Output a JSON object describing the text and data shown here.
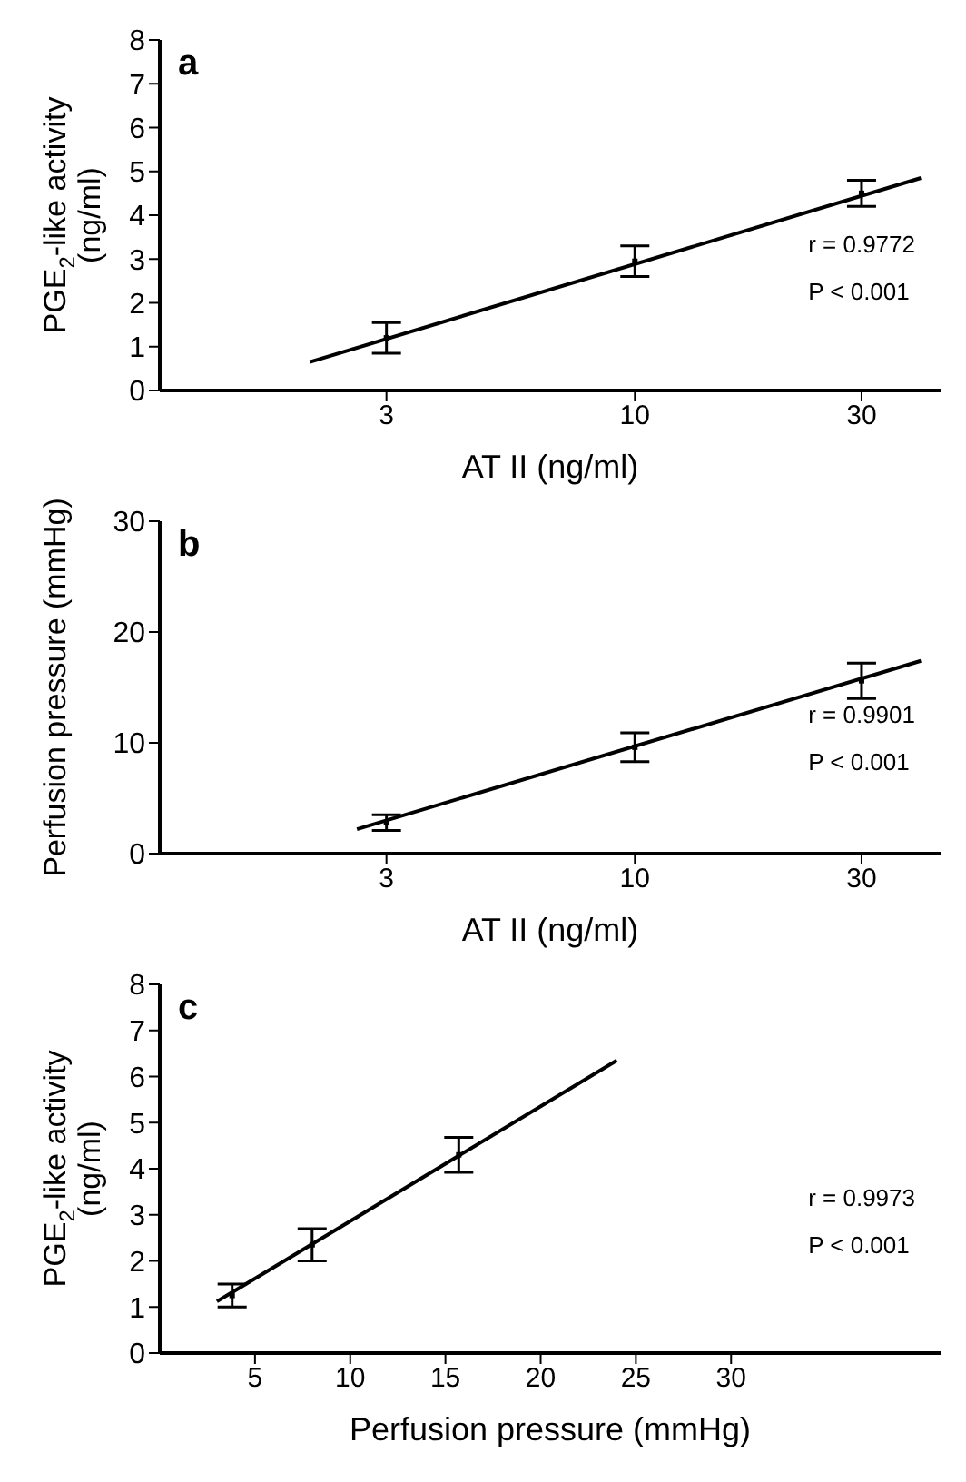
{
  "chart_data": [
    {
      "type": "scatter",
      "title": "a",
      "xlabel": "AT II (ng/ml)",
      "ylabel": "PGE$_{2}$-like activity  (ng/ml)",
      "log": "x",
      "xlim": [
        1,
        44
      ],
      "xticks": [
        3,
        10,
        30
      ],
      "ylim": [
        0,
        8
      ],
      "yticks": [
        0,
        1,
        2,
        3,
        4,
        5,
        6,
        7,
        8
      ],
      "grid": false,
      "annotations": [
        "r = 0.9772",
        "P < 0.001"
      ],
      "series": [
        {
          "type": "scatter",
          "marker": "square",
          "color": "#000000",
          "x": [
            3,
            10,
            30
          ],
          "values": [
            1.2,
            2.95,
            4.5
          ],
          "errors": [
            0.35,
            0.35,
            0.3
          ]
        },
        {
          "type": "line",
          "marker": "none",
          "color": "#000000",
          "x": [
            2.07,
            40
          ],
          "values": [
            0.65,
            4.85
          ]
        }
      ]
    },
    {
      "type": "scatter",
      "title": "b",
      "xlabel": "AT II (ng/ml)",
      "ylabel": "Perfusion pressure (mmHg)",
      "log": "x",
      "xlim": [
        1,
        44
      ],
      "xticks": [
        3,
        10,
        30
      ],
      "ylim": [
        0,
        30
      ],
      "yticks": [
        0,
        10,
        20,
        30
      ],
      "grid": false,
      "annotations": [
        "r = 0.9901",
        "P < 0.001"
      ],
      "series": [
        {
          "type": "scatter",
          "marker": "square",
          "color": "#000000",
          "x": [
            3,
            10,
            30
          ],
          "values": [
            2.8,
            9.6,
            15.6
          ],
          "errors": [
            0.7,
            1.3,
            1.6
          ]
        },
        {
          "type": "line",
          "marker": "none",
          "color": "#000000",
          "x": [
            2.6,
            40
          ],
          "values": [
            2.2,
            17.4
          ]
        }
      ]
    },
    {
      "type": "scatter",
      "title": "c",
      "xlabel": "Perfusion pressure  (mmHg)",
      "ylabel": "PGE$_{2}$-like activity  (ng/ml)",
      "xlim": [
        0,
        41
      ],
      "xticks": [
        5,
        10,
        15,
        20,
        25,
        30
      ],
      "ylim": [
        0,
        8
      ],
      "yticks": [
        0,
        1,
        2,
        3,
        4,
        5,
        6,
        7,
        8
      ],
      "grid": false,
      "annotations": [
        "r = 0.9973",
        "P < 0.001"
      ],
      "series": [
        {
          "type": "scatter",
          "marker": "square",
          "color": "#000000",
          "x": [
            3.8,
            8,
            15.7
          ],
          "values": [
            1.25,
            2.35,
            4.3
          ],
          "errors": [
            0.25,
            0.35,
            0.38
          ]
        },
        {
          "type": "line",
          "marker": "none",
          "color": "#000000",
          "x": [
            3,
            24
          ],
          "values": [
            1.12,
            6.35
          ]
        }
      ]
    }
  ]
}
